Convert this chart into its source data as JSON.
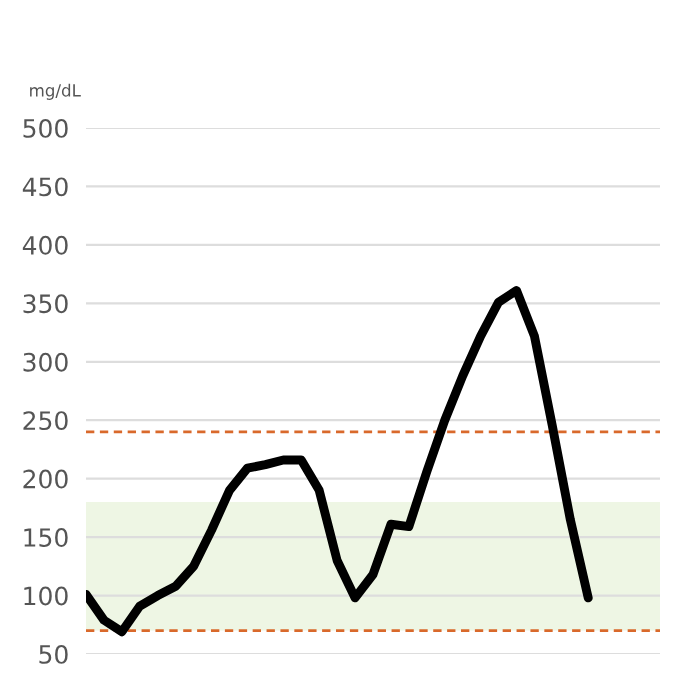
{
  "chart_data": {
    "type": "line",
    "ylabel": "mg/dL",
    "categories": [
      null,
      null,
      null,
      null,
      null,
      null,
      null,
      null,
      null,
      null,
      null,
      null,
      null,
      null,
      null,
      null,
      null,
      null,
      null,
      null,
      null,
      null,
      null,
      null,
      null,
      null,
      null,
      null,
      null
    ],
    "series": [
      {
        "color": "#000000",
        "values": [
          101,
          79,
          69,
          91,
          100,
          108,
          125,
          156,
          190,
          209,
          212,
          216,
          216,
          190,
          130,
          98,
          118,
          161,
          159,
          206,
          250,
          288,
          322,
          351,
          361,
          322,
          245,
          165,
          98
        ]
      }
    ],
    "ylim": [
      50,
      500
    ],
    "yticks": [
      50,
      100,
      150,
      200,
      250,
      300,
      350,
      400,
      450,
      500
    ],
    "grid": "y",
    "marker": "none",
    "line_style": "solid",
    "tick_labels": "y",
    "bands": [
      {
        "axis": "y",
        "from": 70,
        "to": 180,
        "color": "#eef6e4"
      }
    ],
    "ref_lines": [
      {
        "axis": "y",
        "value": 240,
        "color": "#d9692b",
        "line_style": "dashed"
      },
      {
        "axis": "y",
        "value": 70,
        "color": "#d9692b",
        "line_style": "dashed"
      }
    ]
  }
}
